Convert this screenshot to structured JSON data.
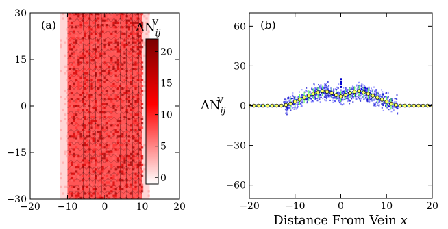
{
  "chart_data": [
    {
      "panel": "(a)",
      "type": "heatmap",
      "xlim": [
        -20,
        20
      ],
      "ylim": [
        -30,
        30
      ],
      "xticks": [
        "−20",
        "−10",
        "0",
        "10",
        "20"
      ],
      "yticks": [
        "30",
        "15",
        "0",
        "−15",
        "−30"
      ],
      "colorbar": {
        "label_main": "ΔN",
        "label_sub": "ij",
        "label_sup": "V",
        "range": [
          -1,
          22
        ],
        "ticks": [
          "20",
          "15",
          "10",
          "5",
          "0"
        ],
        "colors": [
          "#ffffff",
          "#ff0000",
          "#7a0000"
        ]
      },
      "band": {
        "x_extent": [
          -12,
          12
        ],
        "dense_extent": [
          -10,
          10
        ]
      }
    },
    {
      "panel": "(b)",
      "type": "scatter",
      "xlim": [
        -20,
        20
      ],
      "ylim": [
        -70,
        70
      ],
      "xticks": [
        "−20",
        "−10",
        "0",
        "10",
        "20"
      ],
      "yticks": [
        "60",
        "30",
        "0",
        "−30",
        "−60"
      ],
      "xlabel": "Distance From Vein ",
      "xlabel_var": "x",
      "ylabel_main": "ΔN",
      "ylabel_sub": "ij",
      "ylabel_sup": "V",
      "scatter_color": "#0000cc",
      "mean_color": "#66ff66",
      "mean_points": [
        {
          "x": -20,
          "y": 0
        },
        {
          "x": -19,
          "y": 0
        },
        {
          "x": -18,
          "y": 0
        },
        {
          "x": -17,
          "y": 0
        },
        {
          "x": -16,
          "y": 0
        },
        {
          "x": -15,
          "y": 0
        },
        {
          "x": -14,
          "y": 0
        },
        {
          "x": -13,
          "y": 0
        },
        {
          "x": -12,
          "y": 0.5
        },
        {
          "x": -11,
          "y": 1.5
        },
        {
          "x": -10,
          "y": 3
        },
        {
          "x": -9,
          "y": 4.5
        },
        {
          "x": -8,
          "y": 6
        },
        {
          "x": -7,
          "y": 7.5
        },
        {
          "x": -6,
          "y": 9
        },
        {
          "x": -5,
          "y": 10
        },
        {
          "x": -4,
          "y": 11
        },
        {
          "x": -3,
          "y": 10.5
        },
        {
          "x": -2,
          "y": 9.5
        },
        {
          "x": -1,
          "y": 8
        },
        {
          "x": 0,
          "y": 7
        },
        {
          "x": 1,
          "y": 8
        },
        {
          "x": 2,
          "y": 9.5
        },
        {
          "x": 3,
          "y": 10.5
        },
        {
          "x": 4,
          "y": 11
        },
        {
          "x": 5,
          "y": 10
        },
        {
          "x": 6,
          "y": 9
        },
        {
          "x": 7,
          "y": 7.5
        },
        {
          "x": 8,
          "y": 6
        },
        {
          "x": 9,
          "y": 4.5
        },
        {
          "x": 10,
          "y": 3
        },
        {
          "x": 11,
          "y": 1.5
        },
        {
          "x": 12,
          "y": 0.5
        },
        {
          "x": 13,
          "y": 0
        },
        {
          "x": 14,
          "y": 0
        },
        {
          "x": 15,
          "y": 0
        },
        {
          "x": 16,
          "y": 0
        },
        {
          "x": 17,
          "y": 0
        },
        {
          "x": 18,
          "y": 0
        },
        {
          "x": 19,
          "y": 0
        },
        {
          "x": 20,
          "y": 0
        }
      ]
    }
  ]
}
